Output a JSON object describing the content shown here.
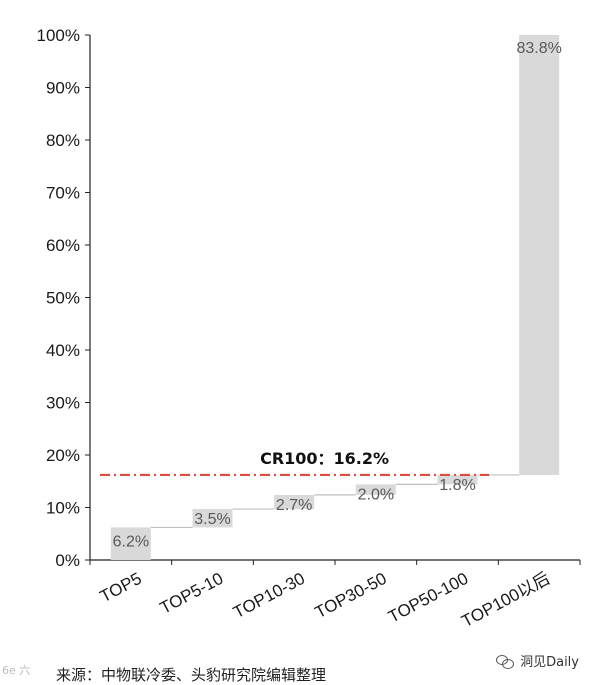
{
  "chart_data": {
    "type": "bar",
    "subtype": "waterfall",
    "categories": [
      "TOP5",
      "TOP5-10",
      "TOP10-30",
      "TOP30-50",
      "TOP50-100",
      "TOP100以后"
    ],
    "values": [
      6.2,
      3.5,
      2.7,
      2.0,
      1.8,
      83.8
    ],
    "value_labels": [
      "6.2%",
      "3.5%",
      "2.7%",
      "2.0%",
      "1.8%",
      "83.8%"
    ],
    "ylim": [
      0,
      100
    ],
    "yticks": [
      0,
      10,
      20,
      30,
      40,
      50,
      60,
      70,
      80,
      90,
      100
    ],
    "ytick_labels": [
      "0%",
      "10%",
      "20%",
      "30%",
      "40%",
      "50%",
      "60%",
      "70%",
      "80%",
      "90%",
      "100%"
    ],
    "reference_line": {
      "value": 16.2,
      "label": "CR100：16.2%",
      "color": "#e04a3a"
    },
    "bar_color": "#d9d9d9",
    "grid": false,
    "title": "",
    "xlabel": "",
    "ylabel": ""
  },
  "footer": {
    "source": "来源：中物联冷委、头豹研究院编辑整理",
    "watermark": "洞见Daily",
    "corner_mark": "6e 六"
  }
}
